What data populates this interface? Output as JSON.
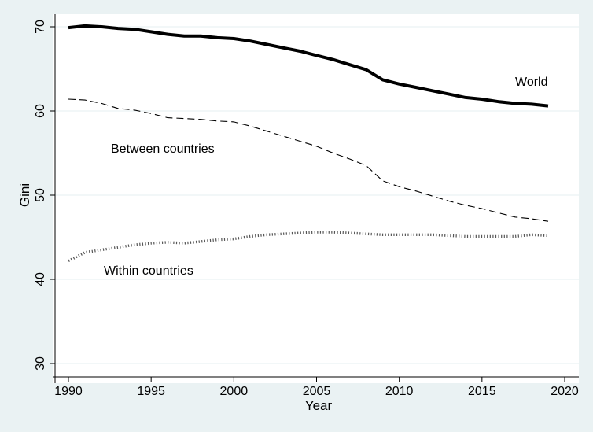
{
  "chart_data": {
    "type": "line",
    "title": "",
    "xlabel": "Year",
    "ylabel": "Gini",
    "xlim": [
      1990,
      2020
    ],
    "ylim": [
      30,
      70
    ],
    "xticks": [
      1990,
      1995,
      2000,
      2005,
      2010,
      2015,
      2020
    ],
    "yticks": [
      30,
      40,
      50,
      60,
      70
    ],
    "grid": "horizontal",
    "legend": "none",
    "x": [
      1990,
      1991,
      1992,
      1993,
      1994,
      1995,
      1996,
      1997,
      1998,
      1999,
      2000,
      2001,
      2002,
      2003,
      2004,
      2005,
      2006,
      2007,
      2008,
      2009,
      2010,
      2011,
      2012,
      2013,
      2014,
      2015,
      2016,
      2017,
      2018,
      2019
    ],
    "series": [
      {
        "name": "World",
        "style": "solid-thick",
        "color": "#000000",
        "values": [
          69.9,
          70.1,
          70.0,
          69.8,
          69.7,
          69.4,
          69.1,
          68.9,
          68.9,
          68.7,
          68.6,
          68.3,
          67.9,
          67.5,
          67.1,
          66.6,
          66.1,
          65.5,
          64.9,
          63.7,
          63.2,
          62.8,
          62.4,
          62.0,
          61.6,
          61.4,
          61.1,
          60.9,
          60.8,
          60.6
        ]
      },
      {
        "name": "Between countries",
        "style": "dashed",
        "color": "#000000",
        "values": [
          61.4,
          61.3,
          60.9,
          60.3,
          60.1,
          59.7,
          59.2,
          59.1,
          59.0,
          58.8,
          58.7,
          58.2,
          57.6,
          57.0,
          56.4,
          55.8,
          55.0,
          54.3,
          53.5,
          51.7,
          51.0,
          50.5,
          49.9,
          49.3,
          48.8,
          48.4,
          47.9,
          47.4,
          47.2,
          46.9
        ]
      },
      {
        "name": "Within countries",
        "style": "dotted",
        "color": "#555555",
        "values": [
          42.2,
          43.2,
          43.5,
          43.8,
          44.1,
          44.3,
          44.4,
          44.3,
          44.5,
          44.7,
          44.8,
          45.1,
          45.3,
          45.4,
          45.5,
          45.6,
          45.6,
          45.5,
          45.4,
          45.3,
          45.3,
          45.3,
          45.3,
          45.2,
          45.1,
          45.1,
          45.1,
          45.1,
          45.3,
          45.2
        ]
      }
    ],
    "annotations": [
      {
        "text": "World",
        "series": "World"
      },
      {
        "text": "Between countries",
        "series": "Between countries"
      },
      {
        "text": "Within countries",
        "series": "Within countries"
      }
    ]
  }
}
